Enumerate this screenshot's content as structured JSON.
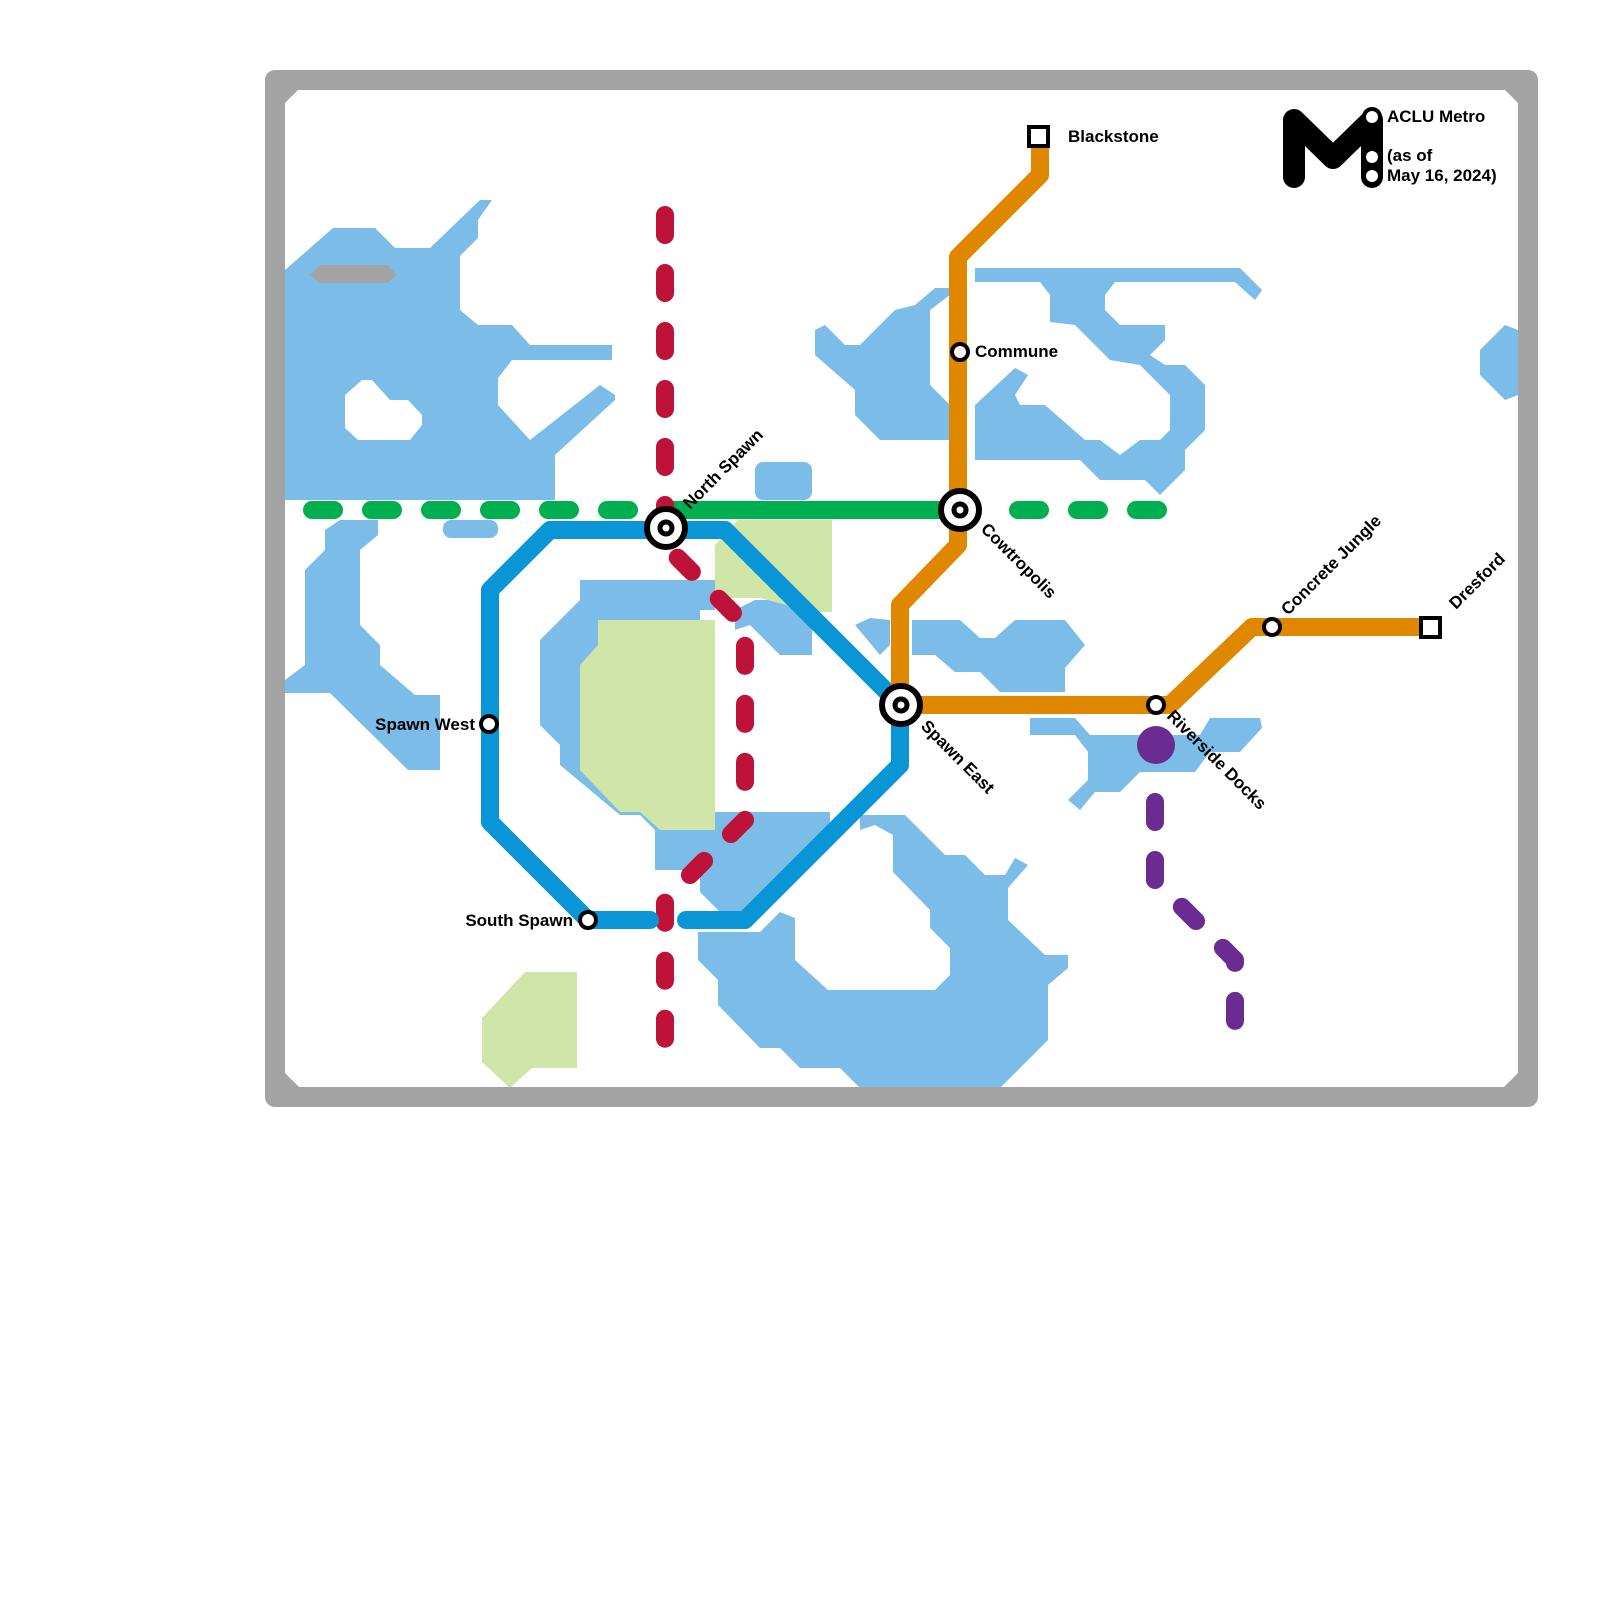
{
  "title": "ACLU Metro",
  "subtitle_line1": "(as of",
  "subtitle_line2": "May 16, 2024)",
  "colors": {
    "blue_line": "#0a96d6",
    "green_line": "#00b050",
    "orange_line": "#e08700",
    "red_line": "#be1238",
    "purple_line": "#6a2c91",
    "water": "#7bbde8",
    "park": "#d0e5a8",
    "frame": "#a3a3a3"
  },
  "stations": {
    "north_spawn": "North Spawn",
    "cowtropolis": "Cowtropolis",
    "spawn_east": "Spawn East",
    "commune": "Commune",
    "spawn_west": "Spawn West",
    "south_spawn": "South Spawn",
    "riverside_docks": "Riverside Docks",
    "concrete_jungle": "Concrete Jungle",
    "blackstone": "Blackstone",
    "dresford": "Dresford"
  },
  "logo_icon": "metro-m-logo"
}
